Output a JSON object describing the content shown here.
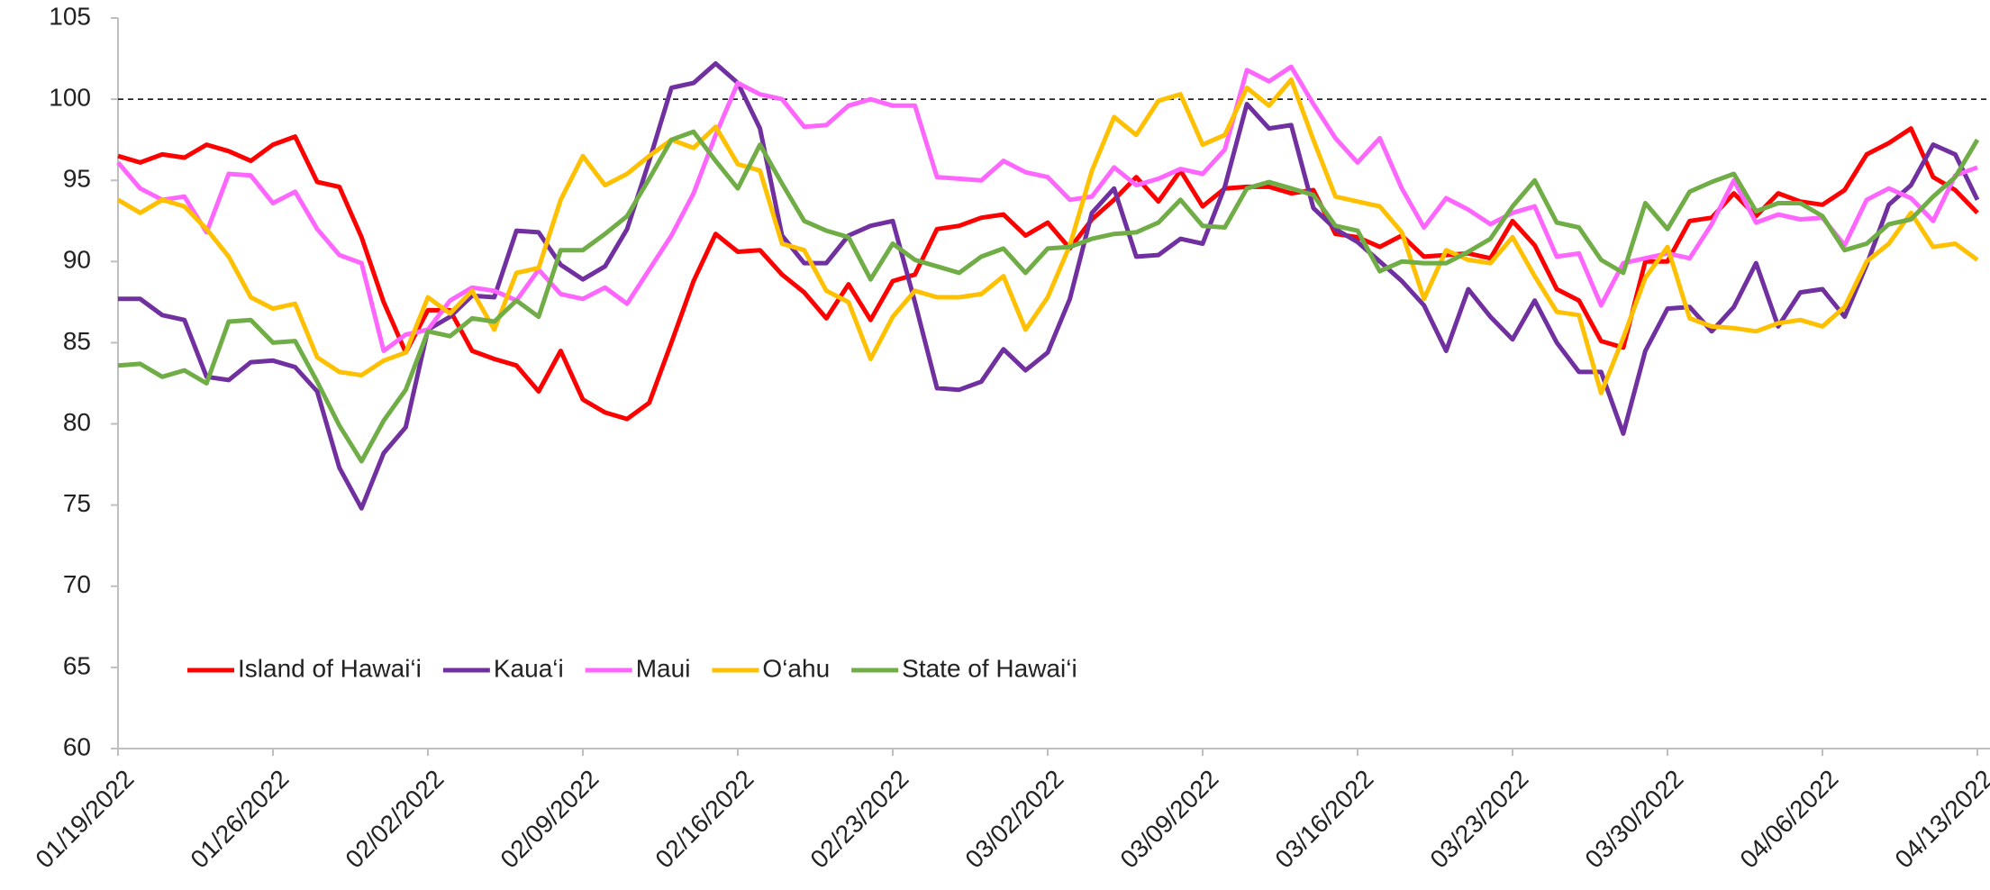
{
  "chart_data": {
    "type": "line",
    "categories": [
      "01/19/2022",
      null,
      null,
      null,
      null,
      null,
      null,
      "01/26/2022",
      null,
      null,
      null,
      null,
      null,
      null,
      "02/02/2022",
      null,
      null,
      null,
      null,
      null,
      null,
      "02/09/2022",
      null,
      null,
      null,
      null,
      null,
      null,
      "02/16/2022",
      null,
      null,
      null,
      null,
      null,
      null,
      "02/23/2022",
      null,
      null,
      null,
      null,
      null,
      null,
      "03/02/2022",
      null,
      null,
      null,
      null,
      null,
      null,
      "03/09/2022",
      null,
      null,
      null,
      null,
      null,
      null,
      "03/16/2022",
      null,
      null,
      null,
      null,
      null,
      null,
      "03/23/2022",
      null,
      null,
      null,
      null,
      null,
      null,
      "03/30/2022",
      null,
      null,
      null,
      null,
      null,
      null,
      "04/06/2022",
      null,
      null,
      null,
      null,
      null,
      null,
      "04/13/2022"
    ],
    "series": [
      {
        "name": "Island of Hawai‘i",
        "color": "#ff0000",
        "values": [
          96.5,
          96.1,
          96.6,
          96.4,
          97.2,
          96.8,
          96.2,
          97.2,
          97.7,
          94.9,
          94.6,
          91.5,
          87.5,
          84.4,
          87.0,
          87.0,
          84.5,
          84.0,
          83.6,
          82.0,
          84.5,
          81.5,
          80.7,
          80.3,
          81.3,
          85.0,
          88.8,
          91.7,
          90.6,
          90.7,
          89.2,
          88.1,
          86.5,
          88.6,
          86.4,
          88.8,
          89.2,
          92.0,
          92.2,
          92.7,
          92.9,
          91.6,
          92.4,
          90.8,
          92.6,
          93.8,
          95.2,
          93.7,
          95.6,
          93.4,
          94.5,
          94.6,
          94.6,
          94.2,
          94.4,
          91.7,
          91.5,
          90.9,
          91.6,
          90.3,
          90.4,
          90.5,
          90.2,
          92.5,
          91.0,
          88.3,
          87.6,
          85.1,
          84.7,
          90.0,
          90.0,
          92.5,
          92.7,
          94.2,
          92.8,
          94.2,
          93.7,
          93.5,
          94.4,
          96.6,
          97.3,
          98.2,
          95.2,
          94.4,
          93.0
        ]
      },
      {
        "name": "Kaua‘i",
        "color": "#7030a0",
        "values": [
          87.7,
          87.7,
          86.7,
          86.4,
          82.9,
          82.7,
          83.8,
          83.9,
          83.5,
          82.0,
          77.3,
          74.8,
          78.2,
          79.8,
          85.8,
          86.6,
          87.9,
          87.8,
          91.9,
          91.8,
          89.8,
          88.9,
          89.7,
          92.0,
          96.2,
          100.7,
          101.0,
          102.2,
          101.0,
          98.2,
          91.6,
          89.9,
          89.9,
          91.6,
          92.2,
          92.5,
          87.5,
          82.2,
          82.1,
          82.6,
          84.6,
          83.3,
          84.4,
          87.7,
          93.0,
          94.5,
          90.3,
          90.4,
          91.4,
          91.1,
          94.6,
          99.7,
          98.2,
          98.4,
          93.3,
          92.0,
          91.2,
          90.0,
          88.8,
          87.3,
          84.5,
          88.3,
          86.6,
          85.2,
          87.6,
          85.0,
          83.2,
          83.2,
          79.4,
          84.5,
          87.1,
          87.2,
          85.7,
          87.2,
          89.9,
          86.0,
          88.1,
          88.3,
          86.6,
          89.8,
          93.5,
          94.7,
          97.2,
          96.6,
          93.8
        ]
      },
      {
        "name": "Maui",
        "color": "#ff66ff",
        "values": [
          96.1,
          94.5,
          93.8,
          94.0,
          91.8,
          95.4,
          95.3,
          93.6,
          94.3,
          92.0,
          90.4,
          89.9,
          84.5,
          85.5,
          85.8,
          87.6,
          88.4,
          88.2,
          87.6,
          89.5,
          88.0,
          87.7,
          88.4,
          87.4,
          89.5,
          91.6,
          94.2,
          97.8,
          101.0,
          100.3,
          100.0,
          98.3,
          98.4,
          99.6,
          100.0,
          99.6,
          99.6,
          95.2,
          95.1,
          95.0,
          96.2,
          95.5,
          95.2,
          93.8,
          94.0,
          95.8,
          94.7,
          95.1,
          95.7,
          95.4,
          96.9,
          101.8,
          101.1,
          102.0,
          99.7,
          97.6,
          96.1,
          97.6,
          94.5,
          92.1,
          93.9,
          93.2,
          92.3,
          93.0,
          93.4,
          90.3,
          90.5,
          87.3,
          89.9,
          90.2,
          90.5,
          90.2,
          92.3,
          95.0,
          92.4,
          92.9,
          92.6,
          92.7,
          91.0,
          93.8,
          94.5,
          93.9,
          92.5,
          95.3,
          95.8
        ]
      },
      {
        "name": "O‘ahu",
        "color": "#ffc000",
        "values": [
          93.8,
          93.0,
          93.8,
          93.4,
          92.0,
          90.3,
          87.8,
          87.1,
          87.4,
          84.1,
          83.2,
          83.0,
          83.9,
          84.4,
          87.8,
          86.8,
          88.2,
          85.8,
          89.3,
          89.6,
          93.8,
          96.5,
          94.7,
          95.4,
          96.5,
          97.5,
          97.0,
          98.3,
          96.0,
          95.6,
          91.1,
          90.7,
          88.2,
          87.5,
          84.0,
          86.6,
          88.2,
          87.8,
          87.8,
          88.0,
          89.1,
          85.8,
          87.8,
          91.0,
          95.6,
          98.9,
          97.8,
          99.9,
          100.3,
          97.2,
          97.8,
          100.7,
          99.6,
          101.2,
          97.5,
          94.0,
          93.7,
          93.4,
          91.8,
          87.7,
          90.7,
          90.1,
          89.9,
          91.5,
          89.1,
          86.9,
          86.7,
          81.9,
          85.3,
          89.0,
          90.9,
          86.5,
          86.0,
          85.9,
          85.7,
          86.2,
          86.4,
          86.0,
          87.2,
          90.0,
          91.1,
          93.0,
          90.9,
          91.1,
          90.1
        ]
      },
      {
        "name": "State of Hawai‘i",
        "color": "#70ad47",
        "values": [
          83.6,
          83.7,
          82.9,
          83.3,
          82.5,
          86.3,
          86.4,
          85.0,
          85.1,
          82.6,
          79.9,
          77.7,
          80.2,
          82.1,
          85.7,
          85.4,
          86.5,
          86.3,
          87.6,
          86.6,
          90.7,
          90.7,
          91.7,
          92.8,
          95.1,
          97.5,
          98.0,
          96.2,
          94.5,
          97.2,
          94.8,
          92.5,
          91.9,
          91.5,
          88.9,
          91.1,
          90.1,
          89.7,
          89.3,
          90.3,
          90.8,
          89.3,
          90.8,
          90.9,
          91.4,
          91.7,
          91.8,
          92.4,
          93.8,
          92.2,
          92.1,
          94.5,
          94.9,
          94.5,
          94.1,
          92.2,
          91.9,
          89.4,
          90.0,
          89.9,
          89.9,
          90.6,
          91.4,
          93.4,
          95.0,
          92.4,
          92.1,
          90.1,
          89.3,
          93.6,
          92.0,
          94.3,
          94.9,
          95.4,
          93.1,
          93.6,
          93.6,
          92.8,
          90.7,
          91.1,
          92.3,
          92.6,
          94.0,
          95.2,
          97.5
        ]
      }
    ],
    "ylim": [
      60,
      105
    ],
    "yticks": [
      60,
      65,
      70,
      75,
      80,
      85,
      90,
      95,
      100,
      105
    ],
    "reference_line": 100,
    "grid": false,
    "legend": "lower left"
  }
}
